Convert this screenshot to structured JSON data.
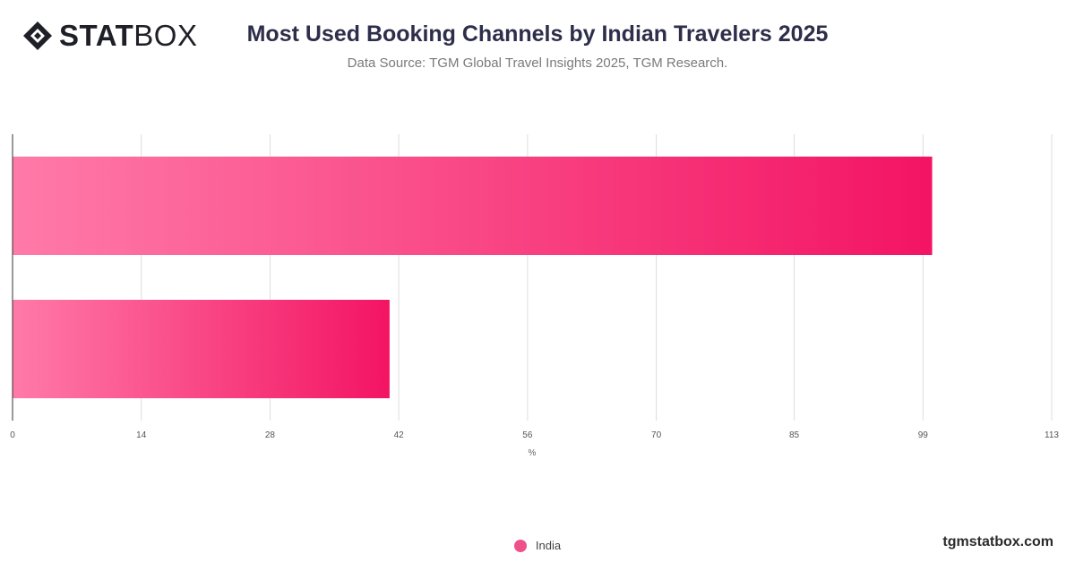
{
  "brand": {
    "logo_bold": "STAT",
    "logo_light": "BOX",
    "site": "tgmstatbox.com"
  },
  "header": {
    "title": "Most Used Booking Channels by Indian Travelers 2025",
    "subtitle": "Data Source: TGM Global Travel Insights 2025, TGM Research."
  },
  "colors": {
    "bar_start": "#ff7aa8",
    "bar_end": "#f31463",
    "grid": "#dddddd",
    "axis": "#333333",
    "legend_dot": "#f0508a"
  },
  "chart_data": {
    "type": "bar",
    "orientation": "horizontal",
    "categories": [
      "",
      ""
    ],
    "series": [
      {
        "name": "India",
        "values": [
          100,
          41
        ]
      }
    ],
    "xlabel": "%",
    "xlim": [
      0,
      113
    ],
    "xticks": [
      0,
      14,
      28,
      42,
      56,
      70,
      85,
      99,
      113
    ],
    "grid": true,
    "legend": "bottom-center"
  }
}
